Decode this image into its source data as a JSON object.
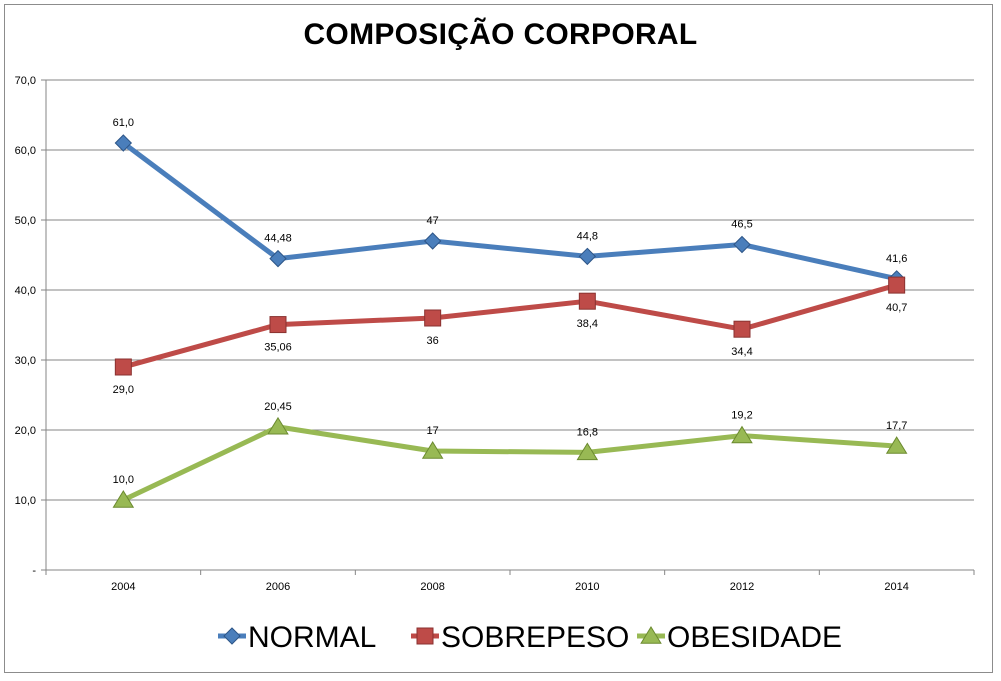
{
  "chart_data": {
    "type": "line",
    "title": "COMPOSIÇÃO CORPORAL",
    "xlabel": "",
    "ylabel": "",
    "categories": [
      "2004",
      "2006",
      "2008",
      "2010",
      "2012",
      "2014"
    ],
    "ylim": [
      0,
      70
    ],
    "y_ticks": [
      "-",
      "10,0",
      "20,0",
      "30,0",
      "40,0",
      "50,0",
      "60,0",
      "70,0"
    ],
    "grid": true,
    "legend_position": "bottom",
    "series": [
      {
        "name": "NORMAL",
        "values": [
          61.0,
          44.48,
          47,
          44.8,
          46.5,
          41.6
        ],
        "labels": [
          "61,0",
          "44,48",
          "47",
          "44,8",
          "46,5",
          "41,6"
        ],
        "label_side": [
          "above",
          "above",
          "above",
          "above",
          "above",
          "above"
        ],
        "color": "#4a7ebb",
        "marker": "diamond"
      },
      {
        "name": "SOBREPESO",
        "values": [
          29.0,
          35.06,
          36,
          38.4,
          34.4,
          40.7
        ],
        "labels": [
          "29,0",
          "35,06",
          "36",
          "38,4",
          "34,4",
          "40,7"
        ],
        "label_side": [
          "below",
          "below",
          "below",
          "below",
          "below",
          "below"
        ],
        "color": "#be4b48",
        "marker": "square"
      },
      {
        "name": "OBESIDADE",
        "values": [
          10.0,
          20.45,
          17,
          16.8,
          19.2,
          17.7
        ],
        "labels": [
          "10,0",
          "20,45",
          "17",
          "16,8",
          "19,2",
          "17,7"
        ],
        "label_side": [
          "above",
          "above",
          "above",
          "above",
          "above",
          "above"
        ],
        "color": "#98b954",
        "marker": "triangle"
      }
    ]
  }
}
